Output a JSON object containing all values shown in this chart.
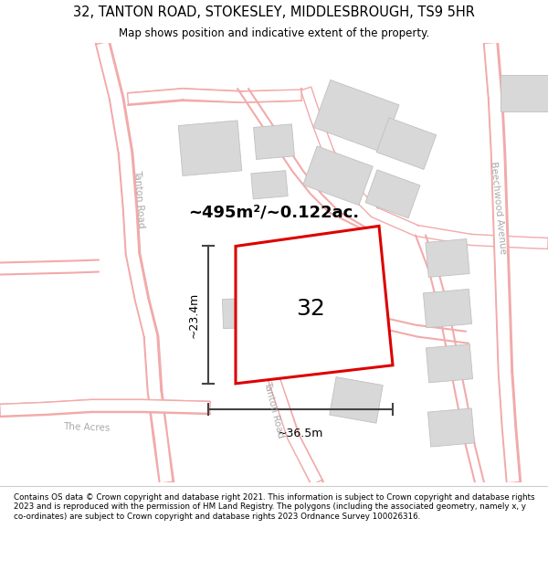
{
  "title": "32, TANTON ROAD, STOKESLEY, MIDDLESBROUGH, TS9 5HR",
  "subtitle": "Map shows position and indicative extent of the property.",
  "footer": "Contains OS data © Crown copyright and database right 2021. This information is subject to Crown copyright and database rights 2023 and is reproduced with the permission of HM Land Registry. The polygons (including the associated geometry, namely x, y co-ordinates) are subject to Crown copyright and database rights 2023 Ordnance Survey 100026316.",
  "title_color": "#000000",
  "footer_color": "#000000",
  "map_bg": "#ffffff",
  "road_color": "#f2aaaa",
  "road_fill": "#fdf5f5",
  "building_color": "#d8d8d8",
  "building_edge_color": "#c0c0c0",
  "highlight_color": "#dd0000",
  "highlight_fill": "#ffffff",
  "dim_color": "#444444",
  "label_color": "#aaaaaa",
  "area_text": "~495m²/~0.122ac.",
  "number_text": "32",
  "dim_width": "~36.5m",
  "dim_height": "~23.4m",
  "road_label_tanton1": "Tanton Road",
  "road_label_tanton2": "Tanton Road",
  "road_label_beechwood": "Beechwood Avenue",
  "road_label_acres": "The Acres",
  "figsize": [
    6.0,
    6.25
  ],
  "dpi": 100
}
